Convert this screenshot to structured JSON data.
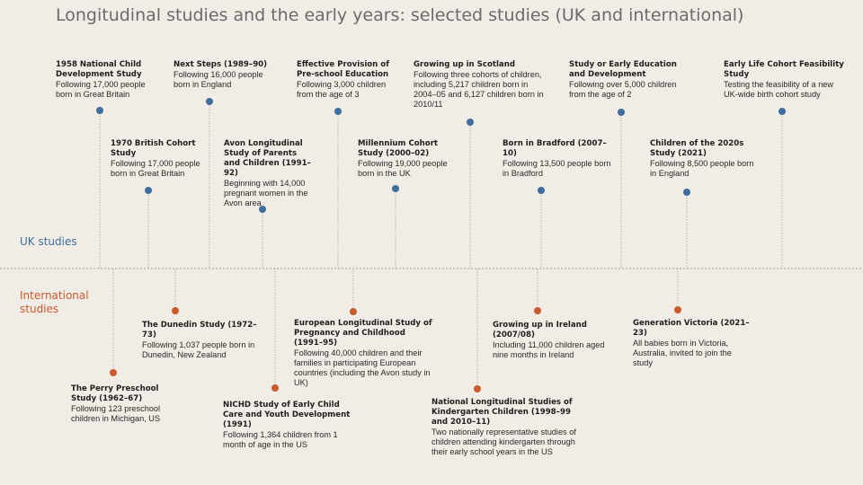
{
  "title": "Longitudinal studies and the early years: selected studies (UK and international)",
  "sections": {
    "uk": "UK studies",
    "international": "International\nstudies"
  },
  "colors": {
    "uk": "#3f6e9c",
    "international": "#c95a2e",
    "axis": "#9a9a9a",
    "stem": "#b3b3b3"
  },
  "uk_studies": [
    {
      "name": "1958 National Child Development Study",
      "desc": "Following 17,000 people born in Great Britain"
    },
    {
      "name": "1970 British Cohort Study",
      "desc": "Following 17,000 people born in Great Britain"
    },
    {
      "name": "Next Steps (1989–90)",
      "desc": "Following 16,000 people born in England"
    },
    {
      "name": "Avon Longitudinal Study of Parents and Children (1991–92)",
      "desc": "Beginning with 14,000 pregnant women in the Avon area"
    },
    {
      "name": "Effective Provision of Pre-school Education",
      "desc": "Following 3,000 children from the age of 3"
    },
    {
      "name": "Millennium Cohort Study (2000–02)",
      "desc": "Following 19,000 people born in the UK"
    },
    {
      "name": "Growing up in Scotland",
      "desc": "Following three cohorts of children, including 5,217 children born in 2004–05 and 6,127 children born in 2010/11"
    },
    {
      "name": "Born in Bradford (2007–10)",
      "desc": "Following 13,500 people born in Bradford"
    },
    {
      "name": "Study or Early Education and Development",
      "desc": "Following over 5,000 children from the age of 2"
    },
    {
      "name": "Children of the 2020s Study (2021)",
      "desc": "Following 8,500 people born in England"
    },
    {
      "name": "Early Life Cohort Feasibility Study",
      "desc": "Testing the feasibility of a new UK-wide birth cohort study"
    }
  ],
  "international_studies": [
    {
      "name": "The Perry Preschool Study (1962–67)",
      "desc": "Following 123 preschool children in Michigan, US"
    },
    {
      "name": "The Dunedin Study (1972–73)",
      "desc": "Following 1,037 people born in Dunedin, New Zealand"
    },
    {
      "name": "NICHD Study of Early Child Care and Youth Development (1991)",
      "desc": "Following 1,364 children from 1 month of age in the US"
    },
    {
      "name": "European Longitudinal Study of Pregnancy and Childhood (1991–95)",
      "desc": "Following 40,000 children and their families in participating European countries (including the Avon study in UK)"
    },
    {
      "name": "National Longitudinal Studies of Kindergarten Children (1998–99 and 2010–11)",
      "desc": "Two nationally representative studies of children attending kindergarten through their early school years in the US"
    },
    {
      "name": "Growing up in Ireland (2007/08)",
      "desc": "Including 11,000 children aged nine months in Ireland"
    },
    {
      "name": "Generation Victoria (2021–23)",
      "desc": "All babies born in Victoria, Australia, invited to join the study"
    }
  ]
}
